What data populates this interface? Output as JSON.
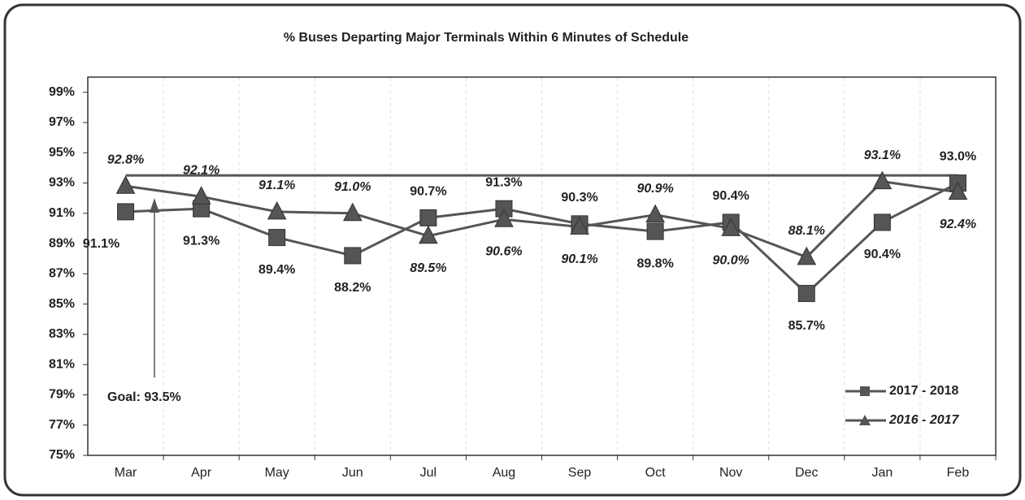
{
  "chart_data": {
    "type": "line",
    "title": "% Buses Departing Major Terminals Within 6 Minutes of Schedule",
    "categories": [
      "Mar",
      "Apr",
      "May",
      "Jun",
      "Jul",
      "Aug",
      "Sep",
      "Oct",
      "Nov",
      "Dec",
      "Jan",
      "Feb"
    ],
    "series": [
      {
        "name": "2017 - 2018",
        "color": "#555555",
        "marker": "square",
        "italic": false,
        "values": [
          91.1,
          91.3,
          89.4,
          88.2,
          90.7,
          91.3,
          90.3,
          89.8,
          90.4,
          85.7,
          90.4,
          93.0
        ],
        "value_labels": [
          "91.1%",
          "91.3%",
          "89.4%",
          "88.2%",
          "90.7%",
          "91.3%",
          "90.3%",
          "89.8%",
          "90.4%",
          "85.7%",
          "90.4%",
          "93.0%"
        ]
      },
      {
        "name": "2016 - 2017",
        "color": "#555555",
        "marker": "triangle",
        "italic": true,
        "values": [
          92.8,
          92.1,
          91.1,
          91.0,
          89.5,
          90.6,
          90.1,
          90.9,
          90.0,
          88.1,
          93.1,
          92.4
        ],
        "value_labels": [
          "92.8%",
          "92.1%",
          "91.1%",
          "91.0%",
          "89.5%",
          "90.6%",
          "90.1%",
          "90.9%",
          "90.0%",
          "88.1%",
          "93.1%",
          "92.4%"
        ]
      }
    ],
    "goal": {
      "value": 93.5,
      "label": "Goal: 93.5%"
    },
    "ylim": [
      75,
      100
    ],
    "yticks": [
      {
        "value": 75,
        "label": "75%"
      },
      {
        "value": 77,
        "label": "77%"
      },
      {
        "value": 79,
        "label": "79%"
      },
      {
        "value": 81,
        "label": "81%"
      },
      {
        "value": 83,
        "label": "83%"
      },
      {
        "value": 85,
        "label": "85%"
      },
      {
        "value": 87,
        "label": "87%"
      },
      {
        "value": 89,
        "label": "89%"
      },
      {
        "value": 91,
        "label": "91%"
      },
      {
        "value": 93,
        "label": "93%"
      },
      {
        "value": 95,
        "label": "95%"
      },
      {
        "value": 97,
        "label": "97%"
      },
      {
        "value": 99,
        "label": "99%"
      }
    ],
    "grid": true,
    "legend": "bottom-right"
  }
}
